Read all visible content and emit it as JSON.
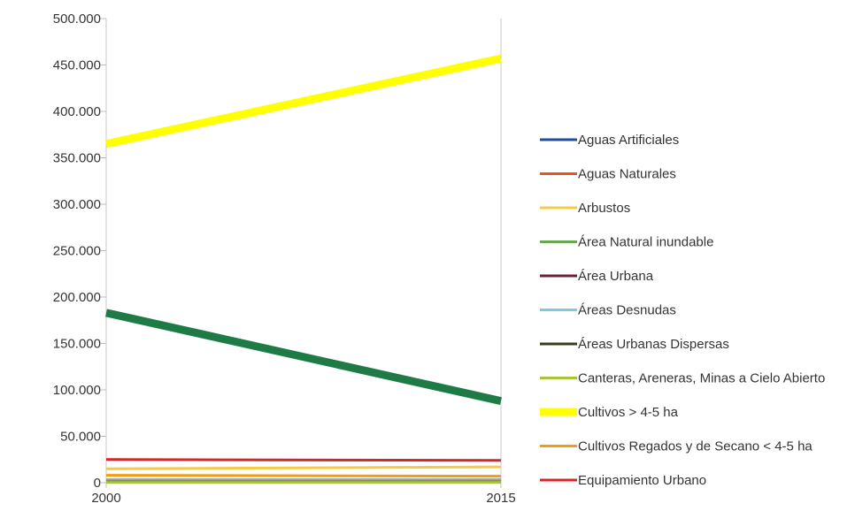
{
  "chart_data": {
    "type": "line",
    "title": "",
    "xlabel": "",
    "ylabel": "",
    "x": [
      "2000",
      "2015"
    ],
    "ylim": [
      0,
      500000
    ],
    "y_ticks": [
      "0",
      "50.000",
      "100.000",
      "150.000",
      "200.000",
      "250.000",
      "300.000",
      "350.000",
      "400.000",
      "450.000",
      "500.000"
    ],
    "grid": {
      "horizontal": false,
      "vertical": true
    },
    "legend_position": "right",
    "series": [
      {
        "name": "Aguas Artificiales",
        "color": "#1f4e9c",
        "values": [
          1500,
          1500
        ],
        "width": 3
      },
      {
        "name": "Aguas Naturales",
        "color": "#e8541e",
        "values": [
          3000,
          3000
        ],
        "width": 3
      },
      {
        "name": "Arbustos",
        "color": "#f7c948",
        "values": [
          15000,
          17000
        ],
        "width": 3
      },
      {
        "name": "Área Natural inundable",
        "color": "#6aa84f",
        "values": [
          500,
          500
        ],
        "width": 3
      },
      {
        "name": "Área Urbana",
        "color": "#6b1f3a",
        "values": [
          1000,
          1100
        ],
        "width": 3
      },
      {
        "name": "Áreas Desnudas",
        "color": "#7ec8e3",
        "values": [
          2000,
          2000
        ],
        "width": 3
      },
      {
        "name": "Áreas Urbanas Dispersas",
        "color": "#3b3b1f",
        "values": [
          800,
          800
        ],
        "width": 3
      },
      {
        "name": "Canteras, Areneras, Minas a Cielo Abierto",
        "color": "#a4c639",
        "values": [
          300,
          300
        ],
        "width": 3
      },
      {
        "name": "Cultivos > 4-5 ha",
        "color": "#ffff00",
        "values": [
          365000,
          457000
        ],
        "width": 9
      },
      {
        "name": "Cultivos Regados y de Secano < 4-5 ha",
        "color": "#f39c12",
        "values": [
          8000,
          7000
        ],
        "width": 3
      },
      {
        "name": "Equipamiento Urbano",
        "color": "#d62728",
        "values": [
          25000,
          24000
        ],
        "width": 3
      },
      {
        "name": "",
        "color": "#1e7b45",
        "values": [
          183000,
          88000
        ],
        "width": 9
      }
    ]
  }
}
